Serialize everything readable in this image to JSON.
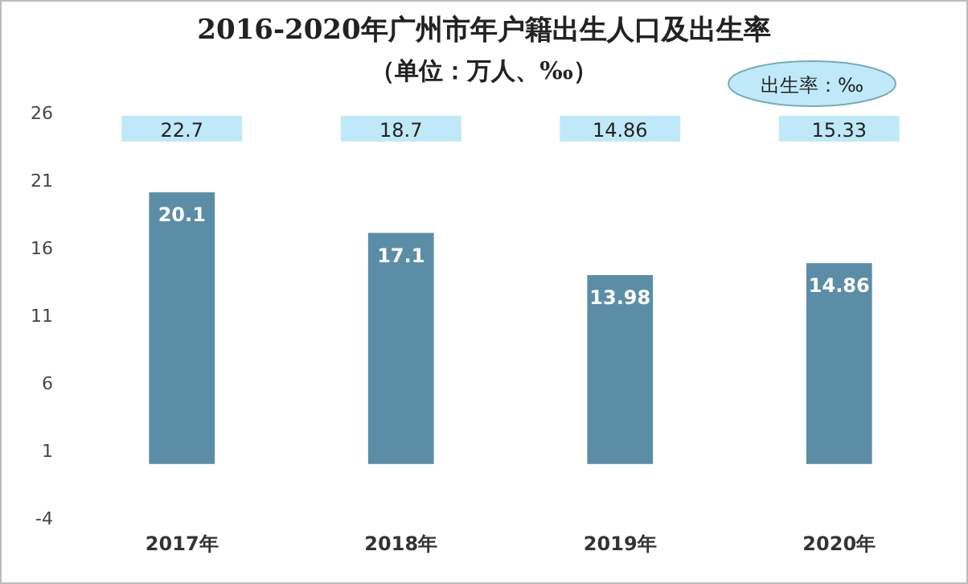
{
  "chart_data": {
    "type": "bar",
    "title": "2016-2020年广州市年户籍出生人口及出生率",
    "subtitle": "（单位：万人、‰）",
    "categories": [
      "2017年",
      "2018年",
      "2019年",
      "2020年"
    ],
    "series": [
      {
        "color": "#5b8ea6",
        "values": [
          20.1,
          17.1,
          13.98,
          14.86
        ]
      }
    ],
    "ylim": [
      -4,
      26
    ],
    "yticks": [
      -4,
      1,
      6,
      11,
      16,
      21,
      26
    ],
    "data_labels": true,
    "annotations": [
      "出生率：‰",
      "22.7",
      "18.7",
      "14.86",
      "15.33"
    ]
  }
}
